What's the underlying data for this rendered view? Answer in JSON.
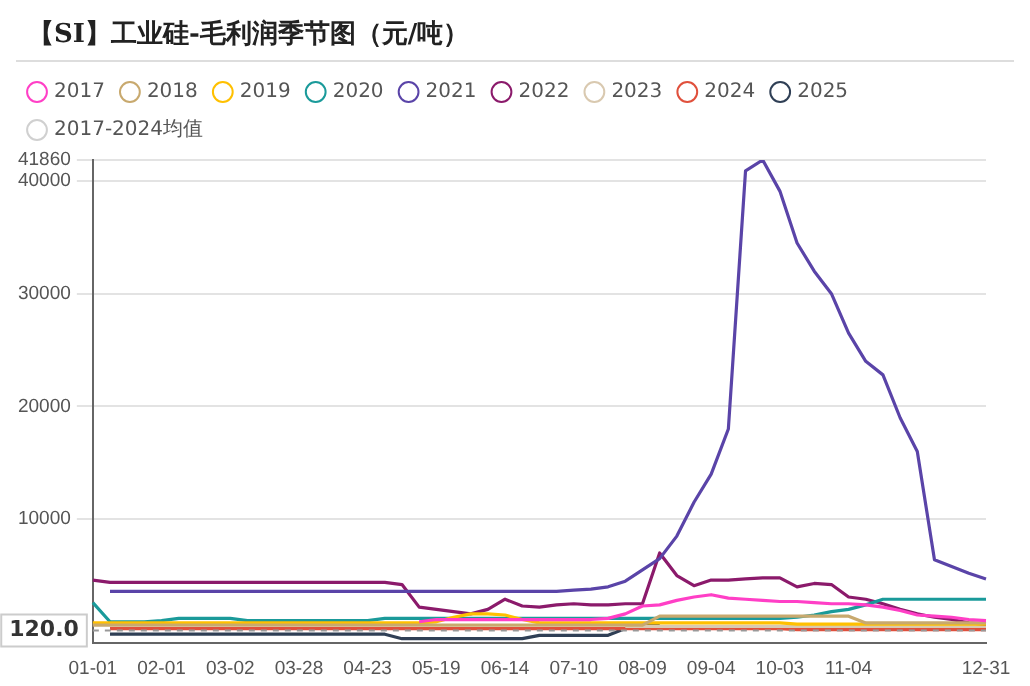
{
  "chart_data": {
    "type": "line",
    "title": "【SI】工业硅-毛利润季节图（元/吨）",
    "categories": [
      "01-01",
      null,
      null,
      null,
      "02-01",
      null,
      null,
      null,
      "03-02",
      null,
      null,
      null,
      "03-28",
      null,
      null,
      null,
      "04-23",
      null,
      null,
      null,
      "05-19",
      null,
      null,
      null,
      "06-14",
      null,
      null,
      null,
      "07-10",
      null,
      null,
      null,
      "08-09",
      null,
      null,
      null,
      "09-04",
      null,
      null,
      null,
      "10-03",
      null,
      null,
      null,
      "11-04",
      null,
      null,
      null,
      null,
      null,
      null,
      null,
      "12-31"
    ],
    "ylim": [
      -1000,
      41860
    ],
    "yticks": [
      10000,
      20000,
      30000,
      40000,
      41860
    ],
    "grid": "y",
    "legend": "top",
    "ref_lines": [
      {
        "axis": "y",
        "value": 120,
        "label": "120.0"
      }
    ],
    "series": [
      {
        "name": "2017",
        "color": "#ff3fc6",
        "values": [
          null,
          null,
          null,
          null,
          null,
          null,
          null,
          null,
          null,
          null,
          null,
          null,
          null,
          null,
          null,
          null,
          null,
          null,
          null,
          900,
          1100,
          1100,
          1100,
          1100,
          1100,
          1100,
          1100,
          1100,
          1100,
          1100,
          1200,
          1600,
          2300,
          2400,
          2800,
          3100,
          3300,
          3000,
          2900,
          2800,
          2700,
          2700,
          2600,
          2500,
          2500,
          2400,
          2200,
          1900,
          1500,
          1400,
          1300,
          1100,
          1000
        ]
      },
      {
        "name": "2018",
        "color": "#c8a96e",
        "values": [
          600,
          600,
          600,
          600,
          600,
          600,
          600,
          600,
          600,
          600,
          600,
          600,
          600,
          600,
          600,
          600,
          600,
          600,
          600,
          600,
          600,
          600,
          600,
          600,
          600,
          600,
          600,
          600,
          600,
          600,
          600,
          600,
          600,
          1400,
          1400,
          1400,
          1400,
          1400,
          1400,
          1400,
          1400,
          1400,
          1400,
          1400,
          1400,
          800,
          800,
          800,
          800,
          800,
          800,
          800,
          800
        ]
      },
      {
        "name": "2019",
        "color": "#ffc000",
        "values": [
          800,
          800,
          800,
          800,
          800,
          800,
          800,
          800,
          800,
          800,
          800,
          800,
          800,
          800,
          800,
          800,
          800,
          800,
          800,
          800,
          900,
          1300,
          1600,
          1600,
          1500,
          1100,
          800,
          800,
          800,
          800,
          800,
          800,
          800,
          800,
          800,
          800,
          800,
          800,
          800,
          800,
          800,
          700,
          700,
          700,
          700,
          700,
          700,
          700,
          700,
          700,
          700,
          700,
          700
        ]
      },
      {
        "name": "2020",
        "color": "#1a9a9a",
        "values": [
          2600,
          900,
          900,
          900,
          1000,
          1200,
          1200,
          1200,
          1200,
          1000,
          1000,
          1000,
          1000,
          1000,
          1000,
          1000,
          1000,
          1200,
          1200,
          1200,
          1200,
          1200,
          1200,
          1200,
          1200,
          1200,
          1200,
          1200,
          1200,
          1200,
          1200,
          1200,
          1200,
          1200,
          1200,
          1200,
          1200,
          1200,
          1200,
          1200,
          1200,
          1300,
          1500,
          1800,
          2000,
          2400,
          2900,
          2900,
          2900,
          2900,
          2900,
          2900,
          2900
        ]
      },
      {
        "name": "2021",
        "color": "#5a44a8",
        "values": [
          null,
          3600,
          3600,
          3600,
          3600,
          3600,
          3600,
          3600,
          3600,
          3600,
          3600,
          3600,
          3600,
          3600,
          3600,
          3600,
          3600,
          3600,
          3600,
          3600,
          3600,
          3600,
          3600,
          3600,
          3600,
          3600,
          3600,
          3600,
          3700,
          3800,
          4000,
          4500,
          5500,
          6500,
          8500,
          11500,
          14000,
          18000,
          40900,
          41860,
          39100,
          34500,
          32000,
          30000,
          26500,
          24000,
          22800,
          19000,
          16000,
          6400,
          5800,
          5200,
          4700
        ]
      },
      {
        "name": "2022",
        "color": "#8b1a6b",
        "values": [
          4600,
          4400,
          4400,
          4400,
          4400,
          4400,
          4400,
          4400,
          4400,
          4400,
          4400,
          4400,
          4400,
          4400,
          4400,
          4400,
          4400,
          4400,
          4200,
          2200,
          2000,
          1800,
          1600,
          2000,
          2900,
          2300,
          2200,
          2400,
          2500,
          2400,
          2400,
          2500,
          2500,
          7000,
          5000,
          4100,
          4600,
          4600,
          4700,
          4800,
          4800,
          4000,
          4300,
          4200,
          3100,
          2900,
          2500,
          2000,
          1600,
          1300,
          1100,
          800,
          700
        ]
      },
      {
        "name": "2023",
        "color": "#d9c9b0",
        "values": [
          null,
          null,
          null,
          null,
          null,
          null,
          null,
          null,
          null,
          null,
          null,
          null,
          null,
          null,
          null,
          null,
          null,
          null,
          null,
          null,
          null,
          null,
          null,
          null,
          null,
          null,
          null,
          null,
          null,
          null,
          null,
          500,
          500,
          500,
          500,
          500,
          500,
          500,
          500,
          500,
          500,
          500,
          500,
          500,
          500,
          500,
          500,
          500,
          500,
          500,
          500,
          500,
          500
        ]
      },
      {
        "name": "2024",
        "color": "#e0503c",
        "values": [
          null,
          300,
          300,
          300,
          300,
          300,
          300,
          300,
          300,
          300,
          300,
          300,
          300,
          300,
          300,
          300,
          300,
          300,
          300,
          300,
          300,
          300,
          300,
          300,
          300,
          300,
          300,
          300,
          300,
          300,
          300,
          300,
          300,
          300,
          300,
          300,
          300,
          300,
          300,
          300,
          300,
          200,
          200,
          200,
          200,
          200,
          200,
          200,
          200,
          200,
          200,
          200,
          200
        ]
      },
      {
        "name": "2025",
        "color": "#2f3f55",
        "values": [
          null,
          -200,
          -200,
          -200,
          -200,
          -200,
          -200,
          -200,
          -200,
          -200,
          -200,
          -200,
          -200,
          -200,
          -200,
          -200,
          -200,
          -200,
          -600,
          -600,
          -600,
          -600,
          -600,
          -600,
          -600,
          -600,
          -300,
          -300,
          -300,
          -300,
          -300,
          300,
          500,
          700,
          null,
          null,
          null,
          null,
          null,
          null,
          null,
          null,
          null,
          null,
          null,
          null,
          null,
          null,
          null,
          null,
          null,
          null,
          null
        ]
      },
      {
        "name": "2017-2024均值",
        "color": "#d0d0d0",
        "values": [
          null,
          null,
          null,
          null,
          null,
          null,
          null,
          null,
          null,
          null,
          null,
          null,
          null,
          null,
          null,
          null,
          null,
          null,
          null,
          null,
          null,
          null,
          null,
          null,
          null,
          null,
          null,
          null,
          null,
          null,
          null,
          null,
          null,
          null,
          null,
          null,
          null,
          null,
          null,
          null,
          null,
          null,
          null,
          null,
          null,
          null,
          null,
          null,
          null,
          null,
          null,
          null,
          null
        ]
      }
    ]
  }
}
